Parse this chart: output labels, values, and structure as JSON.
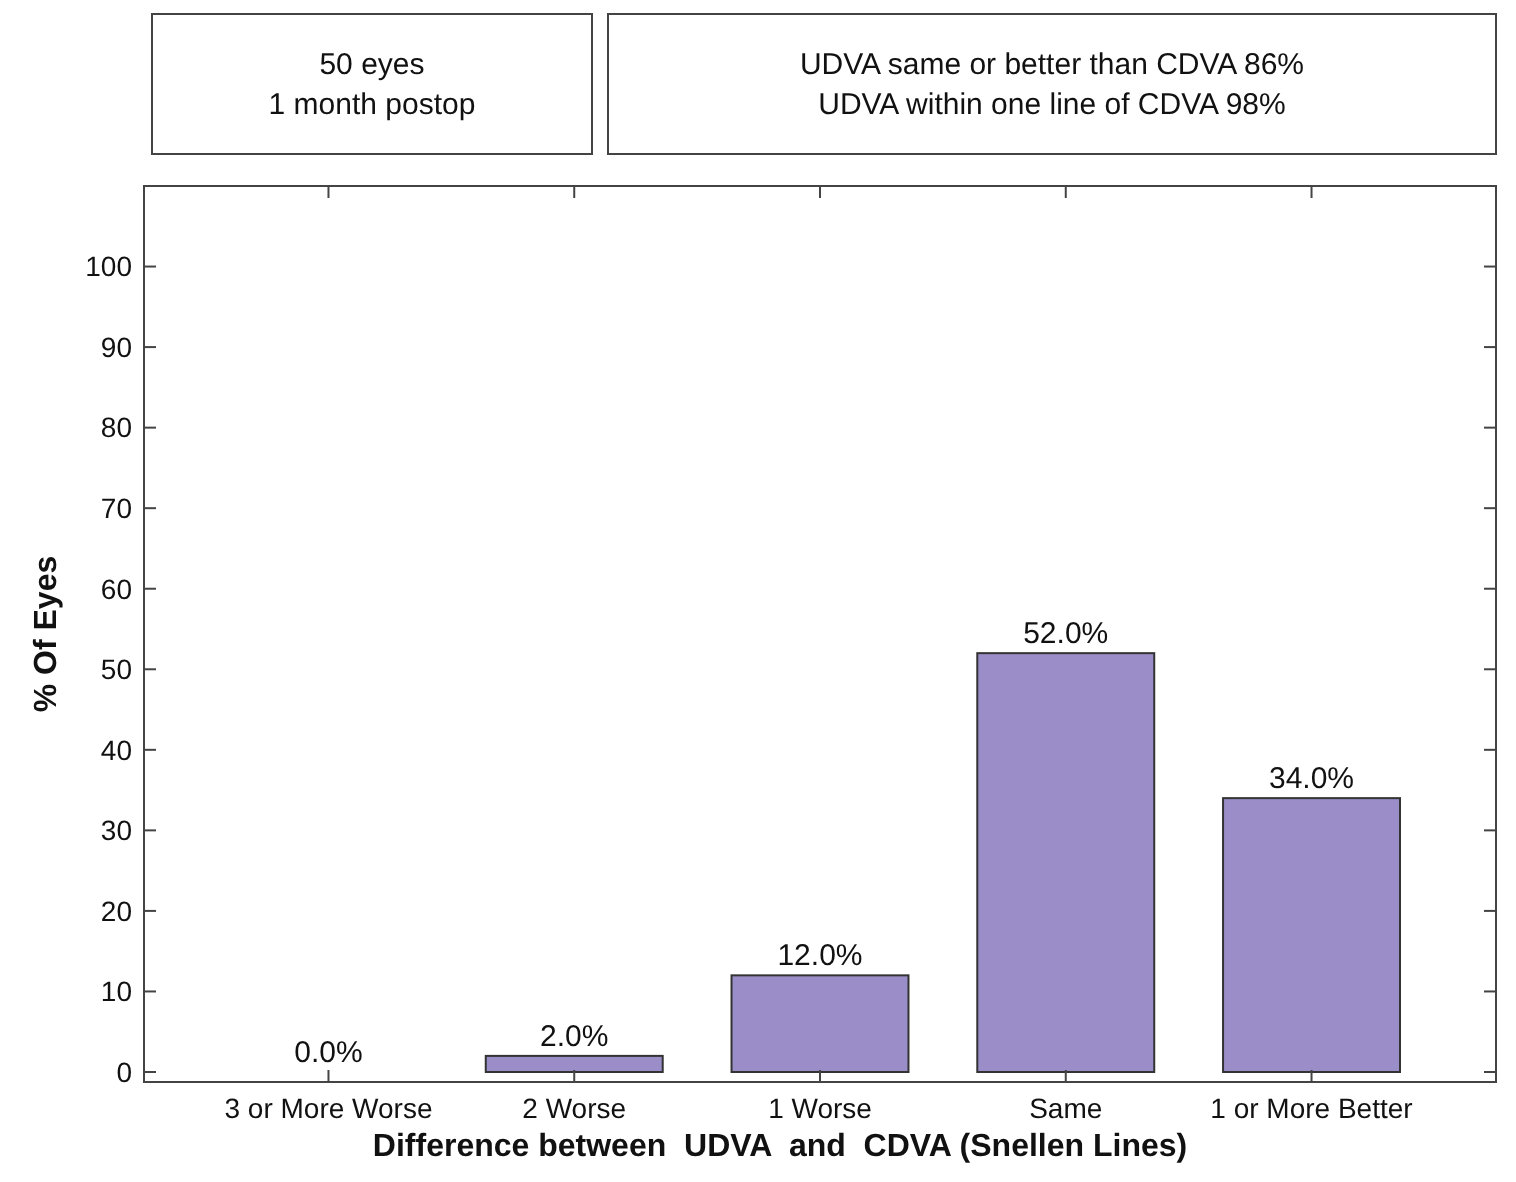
{
  "chart_data": {
    "type": "bar",
    "xlabel": "Difference between  UDVA  and  CDVA (Snellen Lines)",
    "ylabel": "% Of Eyes",
    "categories": [
      "3 or More Worse",
      "2 Worse",
      "1 Worse",
      "Same",
      "1 or More Better"
    ],
    "values": [
      0,
      2,
      12,
      52,
      34
    ],
    "value_labels": [
      "0.0%",
      "2.0%",
      "12.0%",
      "52.0%",
      "34.0%"
    ],
    "color": "#9b8ec8",
    "ylim": [
      0,
      110
    ],
    "yticks": [
      0,
      10,
      20,
      30,
      40,
      50,
      60,
      70,
      80,
      90,
      100
    ],
    "grid": false,
    "annotations": [
      "50 eyes\n1 month postop",
      "UDVA same or better than CDVA 86%\nUDVA within one line of CDVA 98%"
    ]
  }
}
